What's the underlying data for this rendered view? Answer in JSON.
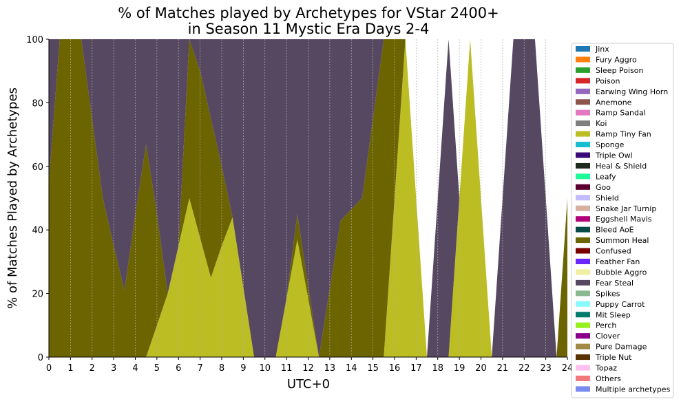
{
  "chart_data": {
    "type": "area",
    "stacked": true,
    "title_lines": [
      "% of Matches played by Archetypes for VStar 2400+",
      "in Season 11 Mystic Era Days 2-4"
    ],
    "xlabel": "UTC+0",
    "ylabel": "% of Matches Played by Archetypes",
    "xlim": [
      0,
      24
    ],
    "ylim": [
      0,
      100
    ],
    "x_ticks": [
      0,
      1,
      2,
      3,
      4,
      5,
      6,
      7,
      8,
      9,
      10,
      11,
      12,
      13,
      14,
      15,
      16,
      17,
      18,
      19,
      20,
      21,
      22,
      23,
      24
    ],
    "y_ticks": [
      0,
      20,
      40,
      60,
      80,
      100
    ],
    "grid": "vertical dashed",
    "legend_position": "right",
    "x": [
      0,
      0.5,
      1,
      1.5,
      2,
      2.5,
      3,
      3.5,
      4,
      4.5,
      5,
      5.5,
      6,
      6.5,
      7,
      7.5,
      8,
      8.5,
      9,
      9.5,
      10,
      10.5,
      11,
      11.5,
      12,
      12.5,
      13,
      13.5,
      14,
      14.5,
      15,
      15.5,
      16,
      16.5,
      17,
      17.5,
      18,
      18.5,
      19,
      19.5,
      20,
      20.5,
      21,
      21.5,
      22,
      22.5,
      23,
      23.5,
      24
    ],
    "series": [
      {
        "name": "Ramp Tiny Fan",
        "color": "#bcbd22",
        "values": [
          0,
          0,
          0,
          0,
          0,
          0,
          0,
          0,
          0,
          0,
          10,
          20,
          35,
          50,
          37.5,
          25,
          35,
          44,
          22,
          0,
          0,
          0,
          18.5,
          37,
          18.5,
          0,
          0,
          0,
          0,
          0,
          0,
          0,
          50,
          100,
          50,
          0,
          0,
          0,
          50,
          100,
          50,
          0,
          0,
          0,
          0,
          0,
          0,
          0,
          0
        ]
      },
      {
        "name": "Summon Heal",
        "color": "#6b6400",
        "values": [
          55,
          100,
          100,
          100,
          75,
          50,
          35,
          21,
          45,
          67,
          35,
          0,
          0,
          50,
          52.5,
          50,
          25,
          0,
          0,
          0,
          0,
          0,
          0,
          8,
          4,
          0,
          21.5,
          43,
          46.5,
          50,
          75,
          100,
          50,
          0,
          0,
          0,
          0,
          0,
          0,
          0,
          0,
          0,
          0,
          0,
          0,
          0,
          0,
          0,
          50
        ]
      },
      {
        "name": "Fear Steal",
        "color": "#574862",
        "values": [
          45,
          0,
          0,
          0,
          25,
          50,
          65,
          79,
          55,
          33,
          55,
          80,
          65,
          0,
          10,
          25,
          40,
          56,
          78,
          100,
          100,
          100,
          81.5,
          55,
          77.5,
          100,
          78.5,
          57,
          53.5,
          50,
          25,
          0,
          0,
          0,
          0,
          0,
          50,
          100,
          0,
          0,
          0,
          0,
          50,
          100,
          100,
          100,
          50,
          0,
          0
        ]
      }
    ],
    "legend": [
      {
        "name": "Jinx",
        "color": "#1f77b4"
      },
      {
        "name": "Fury Aggro",
        "color": "#ff7f0e"
      },
      {
        "name": "Sleep Poison",
        "color": "#2ca02c"
      },
      {
        "name": "Poison",
        "color": "#d62728"
      },
      {
        "name": "Earwing Wing Horn",
        "color": "#9467bd"
      },
      {
        "name": "Anemone",
        "color": "#8c564b"
      },
      {
        "name": "Ramp Sandal",
        "color": "#e377c2"
      },
      {
        "name": "Koi",
        "color": "#7f7f7f"
      },
      {
        "name": "Ramp Tiny Fan",
        "color": "#bcbd22"
      },
      {
        "name": "Sponge",
        "color": "#17becf"
      },
      {
        "name": "Triple Owl",
        "color": "#3b0a7a"
      },
      {
        "name": "Heal & Shield",
        "color": "#1e2a1e"
      },
      {
        "name": "Leafy",
        "color": "#1efa9a"
      },
      {
        "name": "Goo",
        "color": "#5a0032"
      },
      {
        "name": "Shield",
        "color": "#c0bcff"
      },
      {
        "name": "Snake Jar Turnip",
        "color": "#d8b0a0"
      },
      {
        "name": "Eggshell Mavis",
        "color": "#b0007a"
      },
      {
        "name": "Bleed AoE",
        "color": "#0a4a46"
      },
      {
        "name": "Summon Heal",
        "color": "#6b6400"
      },
      {
        "name": "Confused",
        "color": "#7a0000"
      },
      {
        "name": "Feather Fan",
        "color": "#6a28ff"
      },
      {
        "name": "Bubble Aggro",
        "color": "#f0f0a0"
      },
      {
        "name": "Fear Steal",
        "color": "#574862"
      },
      {
        "name": "Spikes",
        "color": "#8ab890"
      },
      {
        "name": "Puppy Carrot",
        "color": "#8af8ff"
      },
      {
        "name": "Mit Sleep",
        "color": "#007a6a"
      },
      {
        "name": "Perch",
        "color": "#96f01e"
      },
      {
        "name": "Clover",
        "color": "#8a008a"
      },
      {
        "name": "Pure Damage",
        "color": "#a08a46"
      },
      {
        "name": "Triple Nut",
        "color": "#5a3200"
      },
      {
        "name": "Topaz",
        "color": "#ffbef0"
      },
      {
        "name": "Others",
        "color": "#f0787a"
      },
      {
        "name": "Multiple archetypes",
        "color": "#7a8af0"
      }
    ]
  }
}
